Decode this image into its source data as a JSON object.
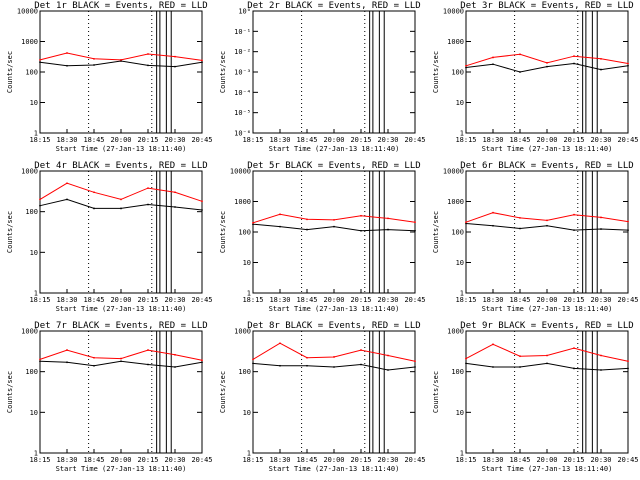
{
  "figure": {
    "xlabel": "Start Time (27-Jan-13 18:11:40)",
    "ylabel": "Counts/sec",
    "x_ticks": [
      "18:15",
      "18:30",
      "18:45",
      "20:00",
      "20:15",
      "20:30",
      "20:45"
    ]
  },
  "chart_data": [
    {
      "type": "line",
      "title": "Det 1r BLACK = Events, RED = LLD",
      "xlabel": "Start Time (27-Jan-13 18:11:40)",
      "ylabel": "Counts/sec",
      "yscale": "log",
      "ylim": [
        1,
        10000
      ],
      "y_ticks": [
        "1",
        "10",
        "100",
        "1000",
        "10000"
      ],
      "x": [
        "18:15",
        "18:30",
        "18:45",
        "20:00",
        "20:15",
        "20:30",
        "20:45"
      ],
      "series": [
        {
          "name": "Events",
          "color": "#000000",
          "values": [
            210,
            160,
            170,
            230,
            165,
            150,
            210
          ]
        },
        {
          "name": "LLD",
          "color": "#ff0000",
          "values": [
            250,
            420,
            270,
            250,
            390,
            320,
            240
          ]
        }
      ]
    },
    {
      "type": "line",
      "title": "Det 2r BLACK = Events, RED = LLD",
      "xlabel": "Start Time (27-Jan-13 18:11:40)",
      "ylabel": "Counts/sec",
      "yscale": "log",
      "ylim": [
        1e-06,
        1
      ],
      "y_ticks": [
        "10⁻⁶",
        "10⁻⁵",
        "10⁻⁴",
        "10⁻³",
        "10⁻²",
        "10⁻¹",
        "10⁰"
      ],
      "x": [
        "18:15",
        "18:30",
        "18:45",
        "20:00",
        "20:15",
        "20:30",
        "20:45"
      ],
      "series": []
    },
    {
      "type": "line",
      "title": "Det 3r BLACK = Events, RED = LLD",
      "xlabel": "Start Time (27-Jan-13 18:11:40)",
      "ylabel": "Counts/sec",
      "yscale": "log",
      "ylim": [
        1,
        10000
      ],
      "y_ticks": [
        "1",
        "10",
        "100",
        "1000",
        "10000"
      ],
      "x": [
        "18:15",
        "18:30",
        "18:45",
        "20:00",
        "20:15",
        "20:30",
        "20:45"
      ],
      "series": [
        {
          "name": "Events",
          "color": "#000000",
          "values": [
            140,
            180,
            100,
            150,
            190,
            120,
            160
          ]
        },
        {
          "name": "LLD",
          "color": "#ff0000",
          "values": [
            160,
            300,
            380,
            200,
            330,
            270,
            190
          ]
        }
      ]
    },
    {
      "type": "line",
      "title": "Det 4r BLACK = Events, RED = LLD",
      "xlabel": "Start Time (27-Jan-13 18:11:40)",
      "ylabel": "Counts/sec",
      "yscale": "log",
      "ylim": [
        1,
        1000
      ],
      "y_ticks": [
        "1",
        "10",
        "100",
        "1000"
      ],
      "x": [
        "18:15",
        "18:30",
        "18:45",
        "20:00",
        "20:15",
        "20:30",
        "20:45"
      ],
      "series": [
        {
          "name": "Events",
          "color": "#000000",
          "values": [
            140,
            200,
            120,
            120,
            150,
            130,
            110
          ]
        },
        {
          "name": "LLD",
          "color": "#ff0000",
          "values": [
            200,
            500,
            300,
            200,
            380,
            300,
            180
          ]
        }
      ]
    },
    {
      "type": "line",
      "title": "Det 5r BLACK = Events, RED = LLD",
      "xlabel": "Start Time (27-Jan-13 18:11:40)",
      "ylabel": "Counts/sec",
      "yscale": "log",
      "ylim": [
        1,
        10000
      ],
      "y_ticks": [
        "1",
        "10",
        "100",
        "1000",
        "10000"
      ],
      "x": [
        "18:15",
        "18:30",
        "18:45",
        "20:00",
        "20:15",
        "20:30",
        "20:45"
      ],
      "series": [
        {
          "name": "Events",
          "color": "#000000",
          "values": [
            180,
            150,
            120,
            150,
            110,
            120,
            110
          ]
        },
        {
          "name": "LLD",
          "color": "#ff0000",
          "values": [
            200,
            380,
            260,
            250,
            340,
            280,
            210
          ]
        }
      ]
    },
    {
      "type": "line",
      "title": "Det 6r BLACK = Events, RED = LLD",
      "xlabel": "Start Time (27-Jan-13 18:11:40)",
      "ylabel": "Counts/sec",
      "yscale": "log",
      "ylim": [
        1,
        10000
      ],
      "y_ticks": [
        "1",
        "10",
        "100",
        "1000",
        "10000"
      ],
      "x": [
        "18:15",
        "18:30",
        "18:45",
        "20:00",
        "20:15",
        "20:30",
        "20:45"
      ],
      "series": [
        {
          "name": "Events",
          "color": "#000000",
          "values": [
            190,
            160,
            130,
            160,
            115,
            125,
            115
          ]
        },
        {
          "name": "LLD",
          "color": "#ff0000",
          "values": [
            210,
            430,
            290,
            240,
            370,
            300,
            220
          ]
        }
      ]
    },
    {
      "type": "line",
      "title": "Det 7r BLACK = Events, RED = LLD",
      "xlabel": "Start Time (27-Jan-13 18:11:40)",
      "ylabel": "Counts/sec",
      "yscale": "log",
      "ylim": [
        1,
        1000
      ],
      "y_ticks": [
        "1",
        "10",
        "100",
        "1000"
      ],
      "x": [
        "18:15",
        "18:30",
        "18:45",
        "20:00",
        "20:15",
        "20:30",
        "20:45"
      ],
      "series": [
        {
          "name": "Events",
          "color": "#000000",
          "values": [
            180,
            170,
            140,
            180,
            150,
            130,
            170
          ]
        },
        {
          "name": "LLD",
          "color": "#ff0000",
          "values": [
            200,
            340,
            220,
            210,
            340,
            260,
            190
          ]
        }
      ]
    },
    {
      "type": "line",
      "title": "Det 8r BLACK = Events, RED = LLD",
      "xlabel": "Start Time (27-Jan-13 18:11:40)",
      "ylabel": "Counts/sec",
      "yscale": "log",
      "ylim": [
        1,
        1000
      ],
      "y_ticks": [
        "1",
        "10",
        "100",
        "1000"
      ],
      "x": [
        "18:15",
        "18:30",
        "18:45",
        "20:00",
        "20:15",
        "20:30",
        "20:45"
      ],
      "series": [
        {
          "name": "Events",
          "color": "#000000",
          "values": [
            160,
            140,
            140,
            130,
            150,
            110,
            130
          ]
        },
        {
          "name": "LLD",
          "color": "#ff0000",
          "values": [
            200,
            500,
            220,
            230,
            340,
            250,
            180
          ]
        }
      ]
    },
    {
      "type": "line",
      "title": "Det 9r BLACK = Events, RED = LLD",
      "xlabel": "Start Time (27-Jan-13 18:11:40)",
      "ylabel": "Counts/sec",
      "yscale": "log",
      "ylim": [
        1,
        1000
      ],
      "y_ticks": [
        "1",
        "10",
        "100",
        "1000"
      ],
      "x": [
        "18:15",
        "18:30",
        "18:45",
        "20:00",
        "20:15",
        "20:30",
        "20:45"
      ],
      "series": [
        {
          "name": "Events",
          "color": "#000000",
          "values": [
            160,
            130,
            130,
            160,
            120,
            110,
            120
          ]
        },
        {
          "name": "LLD",
          "color": "#ff0000",
          "values": [
            210,
            470,
            240,
            250,
            380,
            250,
            180
          ]
        }
      ]
    }
  ]
}
